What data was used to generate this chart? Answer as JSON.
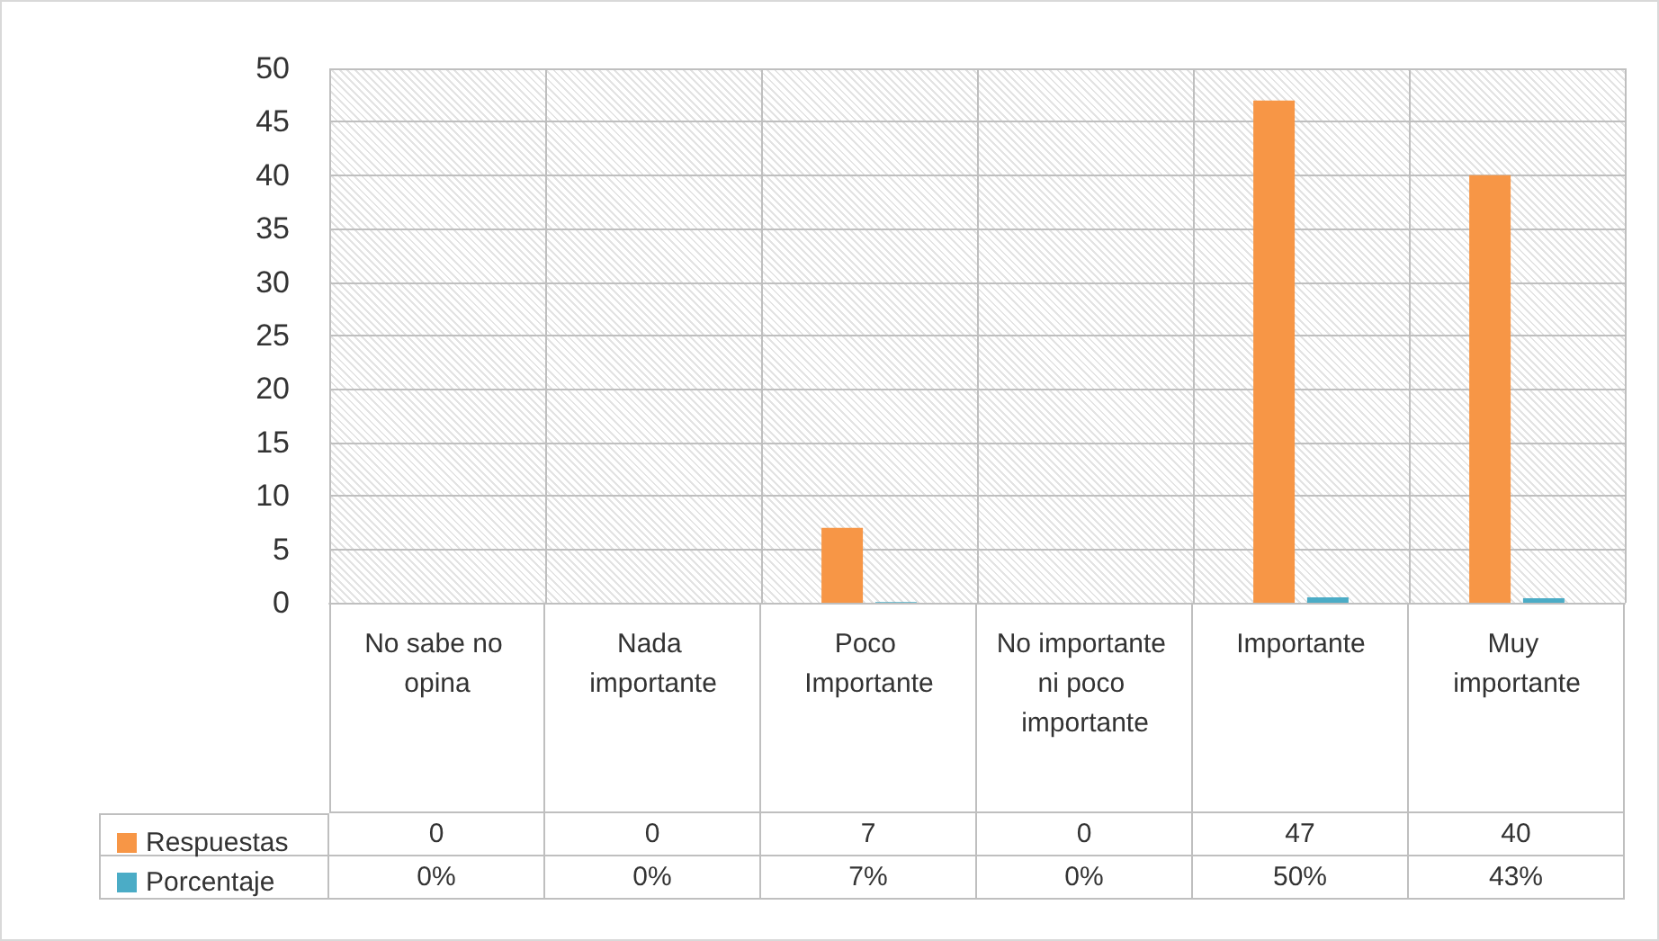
{
  "chart_data": {
    "type": "bar",
    "categories": [
      "No sabe no opina",
      "Nada importante",
      "Poco Importante",
      "No importante ni poco importante",
      "Importante",
      "Muy importante"
    ],
    "series": [
      {
        "name": "Respuestas",
        "color": "#f79646",
        "values": [
          0,
          0,
          7,
          0,
          47,
          40
        ],
        "value_labels": [
          "0",
          "0",
          "7",
          "0",
          "47",
          "40"
        ]
      },
      {
        "name": "Porcentaje",
        "color": "#4bacc6",
        "values": [
          0,
          0,
          0.07,
          0,
          0.5,
          0.43
        ],
        "value_labels": [
          "0%",
          "0%",
          "7%",
          "0%",
          "50%",
          "43%"
        ]
      }
    ],
    "ylim": [
      0,
      50
    ],
    "yticks": [
      0,
      5,
      10,
      15,
      20,
      25,
      30,
      35,
      40,
      45,
      50
    ],
    "grid": true,
    "legend": "bottom left"
  }
}
